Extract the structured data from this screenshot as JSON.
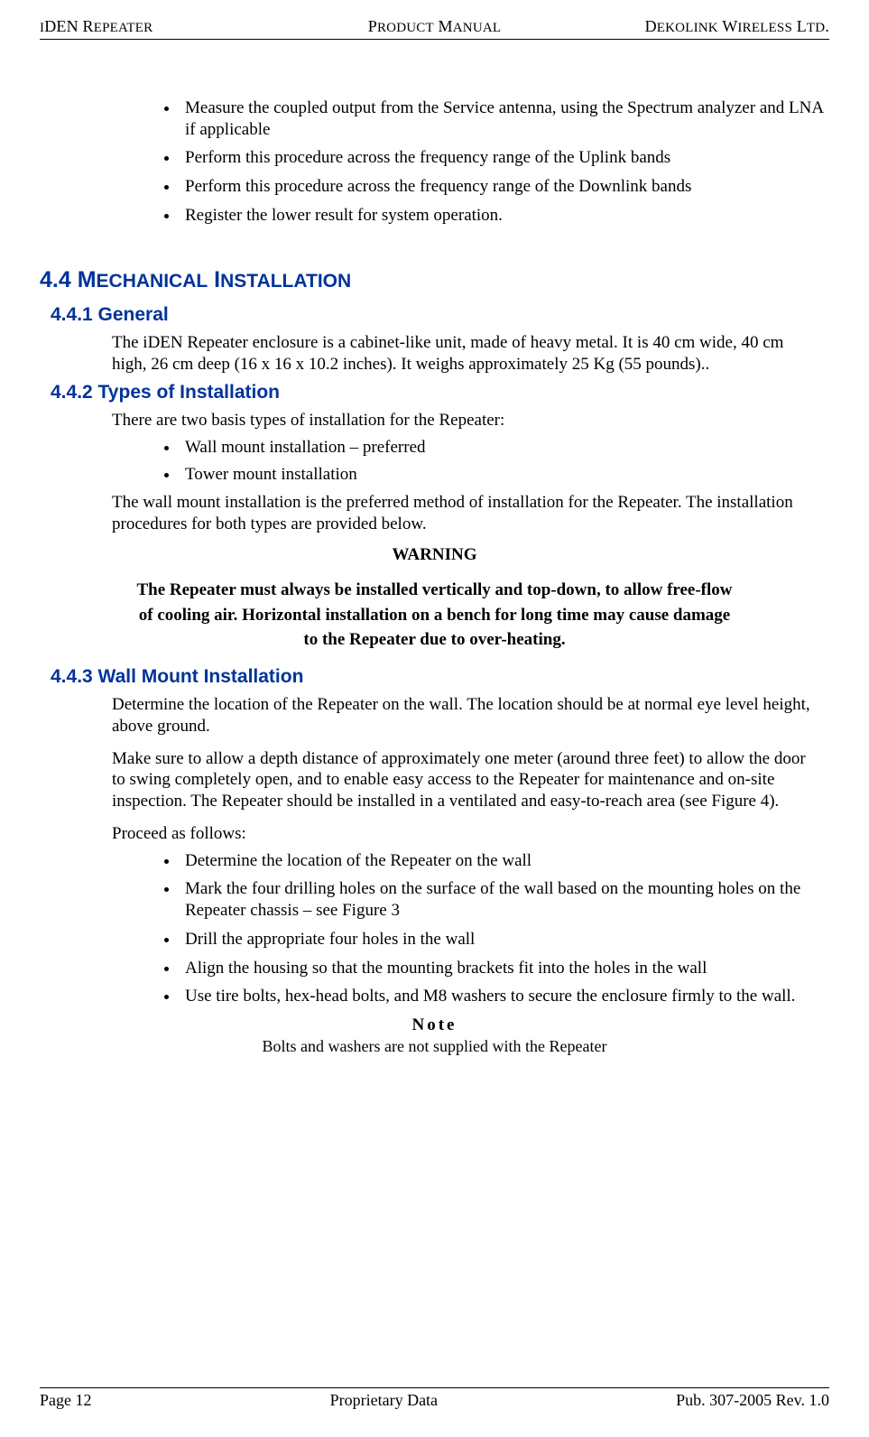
{
  "header": {
    "left": "iDEN Repeater",
    "center": "Product Manual",
    "right": "Dekolink Wireless Ltd."
  },
  "top_bullets": [
    "Measure the coupled output from the Service antenna, using the Spectrum analyzer and LNA if applicable",
    "Perform this procedure across the frequency range of the Uplink bands",
    "Perform this procedure across the frequency range of the Downlink bands",
    "Register the lower result for system operation."
  ],
  "section44": {
    "number": "4.4",
    "title": "Mechanical Installation"
  },
  "sub441": {
    "heading": "4.4.1 General",
    "para": "The iDEN Repeater enclosure is a cabinet-like unit, made of heavy metal. It is 40 cm wide, 40 cm high, 26 cm deep (16 x 16 x 10.2 inches).  It weighs approximately 25 Kg (55 pounds).."
  },
  "sub442": {
    "heading": "4.4.2 Types of Installation",
    "intro": "There are two basis types of installation for the Repeater:",
    "bullets": [
      "Wall mount installation – preferred",
      "Tower mount installation"
    ],
    "outro": "The wall mount installation is the preferred method of installation for the Repeater. The installation procedures for both types are provided below."
  },
  "warning": {
    "head": "WARNING",
    "body_l1": "The Repeater must always be installed vertically and top-down, to allow free-flow",
    "body_l2": "of cooling air.  Horizontal installation on a bench for long time may cause damage",
    "body_l3": "to the Repeater due to over-heating."
  },
  "sub443": {
    "heading": "4.4.3 Wall Mount Installation",
    "p1": "Determine the location of the Repeater on the wall. The location should be at normal eye level height, above ground.",
    "p2": "Make sure to allow a depth distance of approximately one meter (around three feet) to allow the door to swing completely open, and to enable easy access to the Repeater for maintenance and on-site inspection. The Repeater should be installed in a ventilated and easy-to-reach area (see Figure 4).",
    "p3": "Proceed as follows:",
    "bullets": [
      "Determine the location of the Repeater on the wall",
      "Mark the four drilling holes on the surface of the wall based on the mounting holes on the Repeater chassis – see Figure 3",
      "Drill the appropriate four holes in the wall",
      "Align the housing so that the mounting brackets fit into the holes in the wall",
      "Use tire bolts, hex-head bolts, and M8 washers to secure the enclosure firmly to the wall."
    ]
  },
  "note": {
    "head": "Note",
    "body": "Bolts and washers are not supplied with the Repeater"
  },
  "footer": {
    "left": "Page 12",
    "center": "Proprietary Data",
    "right": "Pub. 307-2005 Rev. 1.0"
  }
}
